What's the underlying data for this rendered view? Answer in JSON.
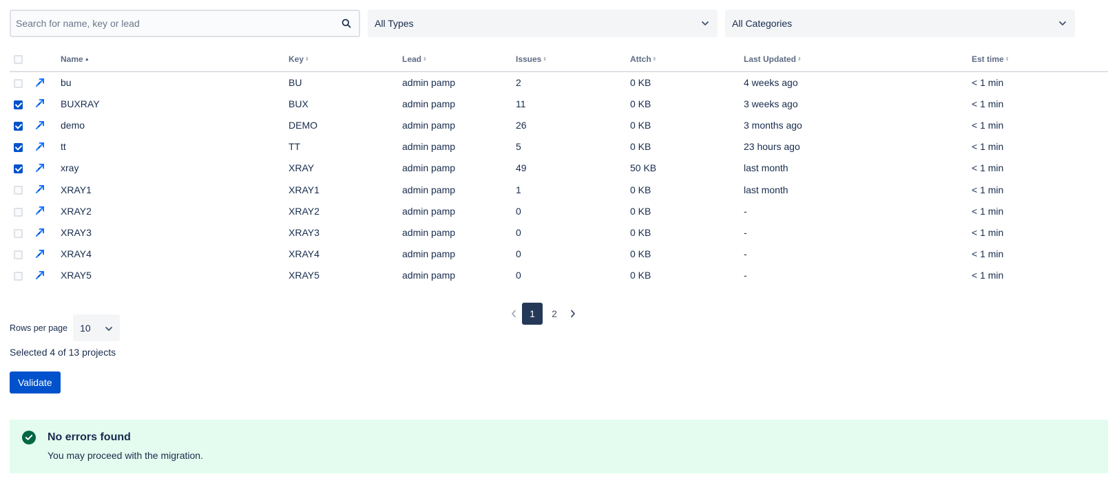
{
  "filters": {
    "search_placeholder": "Search for name, key or lead",
    "type_select": "All Types",
    "category_select": "All Categories"
  },
  "table": {
    "columns": [
      "Name",
      "Key",
      "Lead",
      "Issues",
      "Attch",
      "Last Updated",
      "Est time"
    ],
    "sorted_column": "Name",
    "rows": [
      {
        "checked": false,
        "name": "bu",
        "key": "BU",
        "lead": "admin pamp",
        "issues": "2",
        "attch": "0 KB",
        "last_updated": "4 weeks ago",
        "est_time": "< 1 min"
      },
      {
        "checked": true,
        "name": "BUXRAY",
        "key": "BUX",
        "lead": "admin pamp",
        "issues": "11",
        "attch": "0 KB",
        "last_updated": "3 weeks ago",
        "est_time": "< 1 min"
      },
      {
        "checked": true,
        "name": "demo",
        "key": "DEMO",
        "lead": "admin pamp",
        "issues": "26",
        "attch": "0 KB",
        "last_updated": "3 months ago",
        "est_time": "< 1 min"
      },
      {
        "checked": true,
        "name": "tt",
        "key": "TT",
        "lead": "admin pamp",
        "issues": "5",
        "attch": "0 KB",
        "last_updated": "23 hours ago",
        "est_time": "< 1 min"
      },
      {
        "checked": true,
        "name": "xray",
        "key": "XRAY",
        "lead": "admin pamp",
        "issues": "49",
        "attch": "50 KB",
        "last_updated": "last month",
        "est_time": "< 1 min"
      },
      {
        "checked": false,
        "name": "XRAY1",
        "key": "XRAY1",
        "lead": "admin pamp",
        "issues": "1",
        "attch": "0 KB",
        "last_updated": "last month",
        "est_time": "< 1 min"
      },
      {
        "checked": false,
        "name": "XRAY2",
        "key": "XRAY2",
        "lead": "admin pamp",
        "issues": "0",
        "attch": "0 KB",
        "last_updated": "-",
        "est_time": "< 1 min"
      },
      {
        "checked": false,
        "name": "XRAY3",
        "key": "XRAY3",
        "lead": "admin pamp",
        "issues": "0",
        "attch": "0 KB",
        "last_updated": "-",
        "est_time": "< 1 min"
      },
      {
        "checked": false,
        "name": "XRAY4",
        "key": "XRAY4",
        "lead": "admin pamp",
        "issues": "0",
        "attch": "0 KB",
        "last_updated": "-",
        "est_time": "< 1 min"
      },
      {
        "checked": false,
        "name": "XRAY5",
        "key": "XRAY5",
        "lead": "admin pamp",
        "issues": "0",
        "attch": "0 KB",
        "last_updated": "-",
        "est_time": "< 1 min"
      }
    ]
  },
  "pagination": {
    "pages": [
      "1",
      "2"
    ],
    "current": "1"
  },
  "rows_per_page": {
    "label": "Rows per page",
    "value": "10"
  },
  "selection_summary": "Selected 4 of 13 projects",
  "validate_label": "Validate",
  "banner": {
    "title": "No errors found",
    "message": "You may proceed with the migration."
  },
  "colors": {
    "primary": "#0052cc",
    "current_page": "#253858",
    "success_bg": "#e3fcef",
    "success_icon": "#006644"
  },
  "icons": {
    "search": "search-icon",
    "dropdown": "chevron-down-icon",
    "project": "software-project-icon",
    "success": "check-circle-icon",
    "prev": "chevron-left-icon",
    "next": "chevron-right-icon"
  }
}
